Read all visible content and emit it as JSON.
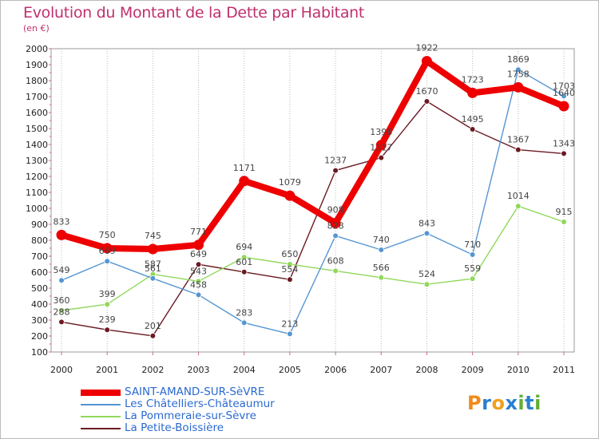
{
  "title": "Evolution du Montant de la Dette par Habitant",
  "subtitle": "(en €)",
  "chart_data": {
    "type": "line",
    "title": "Evolution du Montant de la Dette par Habitant",
    "subtitle": "(en €)",
    "xlabel": "",
    "ylabel": "",
    "x": [
      "2000",
      "2001",
      "2002",
      "2003",
      "2004",
      "2005",
      "2006",
      "2007",
      "2008",
      "2009",
      "2010",
      "2011"
    ],
    "ylim": [
      100,
      2000
    ],
    "yticks": [
      "100",
      "200",
      "300",
      "400",
      "500",
      "600",
      "700",
      "800",
      "900",
      "1000",
      "1100",
      "1200",
      "1300",
      "1400",
      "1500",
      "1600",
      "1700",
      "1800",
      "1900",
      "2000"
    ],
    "grid": "vertical",
    "legend_position": "bottom-left",
    "series": [
      {
        "name": "SAINT-AMAND-SUR-SèVRE",
        "color": "#ee0000",
        "values": [
          833,
          750,
          745,
          771,
          1171,
          1079,
          908,
          1396,
          1922,
          1723,
          1758,
          1640
        ],
        "labels": [
          "833",
          "750",
          "745",
          "771",
          "1171",
          "1079",
          "908",
          "1396",
          "1922",
          "1723",
          "1758",
          "1640"
        ]
      },
      {
        "name": "Les Châtelliers-Châteaumur",
        "color": "#5596d2",
        "values": [
          549,
          669,
          561,
          458,
          283,
          213,
          828,
          740,
          843,
          710,
          1869,
          1703
        ],
        "labels": [
          "549",
          "669",
          "561",
          "458",
          "283",
          "213",
          "828",
          "740",
          "843",
          "710",
          "1869",
          "1703"
        ]
      },
      {
        "name": "La Pommeraie-sur-Sèvre",
        "color": "#90d85a",
        "values": [
          360,
          399,
          587,
          543,
          694,
          650,
          608,
          566,
          524,
          559,
          1014,
          915
        ],
        "labels": [
          "360",
          "399",
          "587",
          "543",
          "694",
          "650",
          "608",
          "566",
          "524",
          "559",
          "1014",
          "915"
        ]
      },
      {
        "name": "La Petite-Boissière",
        "color": "#6a1a22",
        "values": [
          288,
          239,
          201,
          649,
          601,
          554,
          1237,
          1317,
          1670,
          1495,
          1367,
          1343
        ],
        "labels": [
          "288",
          "239",
          "201",
          "649",
          "601",
          "554",
          "1237",
          "1317",
          "1670",
          "1495",
          "1367",
          "1343"
        ]
      }
    ]
  },
  "legend": {
    "items": [
      {
        "label": "SAINT-AMAND-SUR-SèVRE",
        "color": "#ee0000"
      },
      {
        "label": "Les Châtelliers-Châteaumur",
        "color": "#5596d2"
      },
      {
        "label": "La Pommeraie-sur-Sèvre",
        "color": "#90d85a"
      },
      {
        "label": "La Petite-Boissière",
        "color": "#6a1a22"
      }
    ]
  },
  "brand": {
    "text": "Proxiti",
    "letters": [
      "P",
      "r",
      "o",
      "x",
      "i",
      "t",
      "i"
    ],
    "colors": [
      "#f08a1a",
      "#2a7fd0",
      "#f0a020",
      "#2a7fd0",
      "#60b030",
      "#2a7fd0",
      "#60b030"
    ]
  }
}
